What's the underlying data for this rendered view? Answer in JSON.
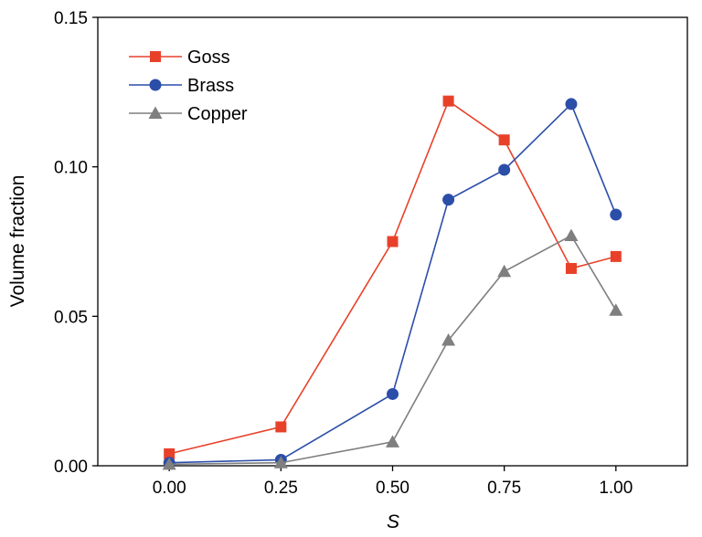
{
  "chart_data": {
    "type": "line",
    "title": "",
    "xlabel": "S",
    "ylabel": "Volume fraction",
    "xlim": [
      -0.16,
      1.16
    ],
    "ylim": [
      0,
      0.15
    ],
    "x_ticks": [
      0.0,
      0.25,
      0.5,
      0.75,
      1.0
    ],
    "x_tick_labels": [
      "0.00",
      "0.25",
      "0.50",
      "0.75",
      "1.00"
    ],
    "y_ticks": [
      0.0,
      0.05,
      0.1,
      0.15
    ],
    "y_tick_labels": [
      "0.00",
      "0.05",
      "0.10",
      "0.15"
    ],
    "grid": false,
    "legend_position": "top-left",
    "series": [
      {
        "name": "Goss",
        "color": "#e8412a",
        "marker": "square",
        "x": [
          0.0,
          0.25,
          0.5,
          0.625,
          0.75,
          0.9,
          1.0
        ],
        "values": [
          0.004,
          0.013,
          0.075,
          0.122,
          0.109,
          0.066,
          0.07
        ]
      },
      {
        "name": "Brass",
        "color": "#2b4ea8",
        "marker": "circle",
        "x": [
          0.0,
          0.25,
          0.5,
          0.625,
          0.75,
          0.9,
          1.0
        ],
        "values": [
          0.001,
          0.002,
          0.024,
          0.089,
          0.099,
          0.121,
          0.084
        ]
      },
      {
        "name": "Copper",
        "color": "#7f7f7f",
        "marker": "triangle",
        "x": [
          0.0,
          0.25,
          0.5,
          0.625,
          0.75,
          0.9,
          1.0
        ],
        "values": [
          0.0005,
          0.001,
          0.008,
          0.042,
          0.065,
          0.077,
          0.052
        ]
      }
    ]
  }
}
